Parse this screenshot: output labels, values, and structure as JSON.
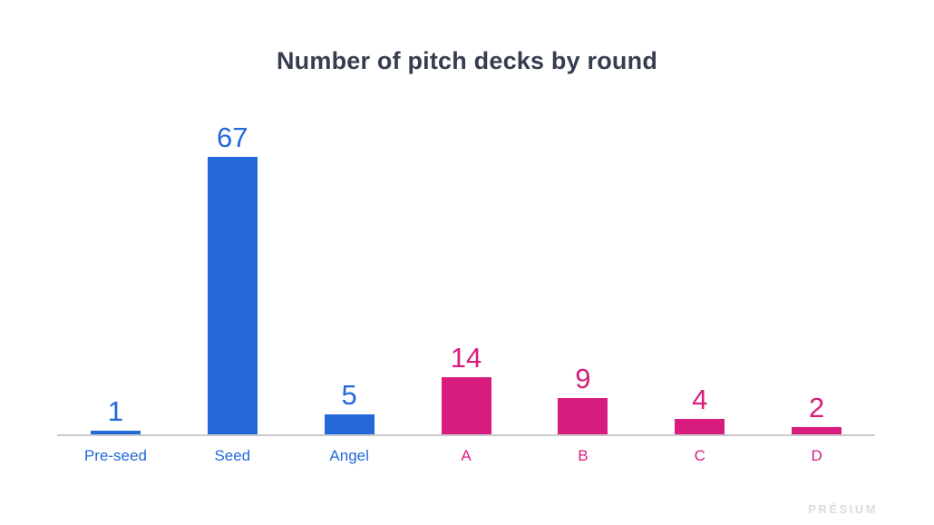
{
  "slide": {
    "watermark": "PRÉSIUM"
  },
  "colors": {
    "background": "#ffffff",
    "title": "#353d4e",
    "axis": "#c9c9ce",
    "watermark": "#dcdcdc",
    "blue": "#2468d9",
    "pink": "#d81c7e"
  },
  "chart_data": {
    "type": "bar",
    "title": "Number of pitch decks by round",
    "categories": [
      "Pre-seed",
      "Seed",
      "Angel",
      "A",
      "B",
      "C",
      "D"
    ],
    "values": [
      1,
      67,
      5,
      14,
      9,
      4,
      2
    ],
    "bar_colors": [
      "#2468d9",
      "#2468d9",
      "#2468d9",
      "#d81c7e",
      "#d81c7e",
      "#d81c7e",
      "#d81c7e"
    ],
    "value_labels_shown": true,
    "xlabel": "",
    "ylabel": "",
    "ylim": [
      0,
      70
    ],
    "grid": false,
    "legend": "none"
  }
}
